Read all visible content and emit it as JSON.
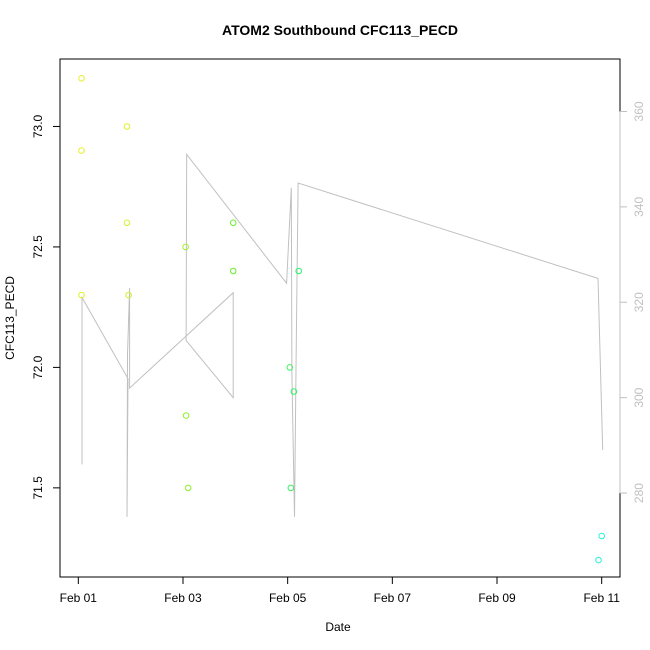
{
  "chart_data": {
    "type": "scatter",
    "title": "ATOM2 Southbound CFC113_PECD",
    "xlabel": "Date",
    "ylabel": "CFC113_PECD",
    "x_tick_labels": [
      "Feb 01",
      "Feb 03",
      "Feb 05",
      "Feb 07",
      "Feb 09",
      "Feb 11"
    ],
    "x_tick_values": [
      0,
      2,
      4,
      6,
      8,
      10
    ],
    "xlim": [
      -0.35,
      10.35
    ],
    "ylim": [
      71.13,
      73.28
    ],
    "y_ticks": [
      71.5,
      72.0,
      72.5,
      73.0
    ],
    "y_tick_labels": [
      "71.5",
      "72.0",
      "72.5",
      "73.0"
    ],
    "y2_ticks": [
      280,
      300,
      320,
      340,
      360
    ],
    "y2_tick_labels": [
      "280",
      "300",
      "320",
      "340",
      "360"
    ],
    "y2lim": [
      262.4,
      371.0
    ],
    "grid": false,
    "points": [
      {
        "x": 0.06,
        "y": 73.2,
        "color": "#e6f028"
      },
      {
        "x": 0.06,
        "y": 72.9,
        "color": "#e6f028"
      },
      {
        "x": 0.06,
        "y": 72.3,
        "color": "#e0f028"
      },
      {
        "x": 0.93,
        "y": 73.0,
        "color": "#e0f028"
      },
      {
        "x": 0.93,
        "y": 72.6,
        "color": "#d6f028"
      },
      {
        "x": 0.96,
        "y": 72.3,
        "color": "#d0f028"
      },
      {
        "x": 2.05,
        "y": 72.5,
        "color": "#9ef028"
      },
      {
        "x": 2.06,
        "y": 71.8,
        "color": "#8cf028"
      },
      {
        "x": 2.1,
        "y": 71.5,
        "color": "#88f028"
      },
      {
        "x": 2.96,
        "y": 72.6,
        "color": "#6cf028"
      },
      {
        "x": 2.96,
        "y": 72.4,
        "color": "#66f028"
      },
      {
        "x": 4.04,
        "y": 72.0,
        "color": "#3cf05a"
      },
      {
        "x": 4.06,
        "y": 71.5,
        "color": "#34f05e"
      },
      {
        "x": 4.12,
        "y": 71.9,
        "color": "#30f064"
      },
      {
        "x": 4.21,
        "y": 72.4,
        "color": "#28f070"
      },
      {
        "x": 9.94,
        "y": 71.2,
        "color": "#28f0d8"
      },
      {
        "x": 10.0,
        "y": 71.3,
        "color": "#28f0e0"
      }
    ],
    "secondary_series": {
      "color": "#c0c0c0",
      "points": [
        {
          "x": 0.07,
          "y2": 286
        },
        {
          "x": 0.07,
          "y2": 321
        },
        {
          "x": 0.95,
          "y2": 304
        },
        {
          "x": 0.93,
          "y2": 275
        },
        {
          "x": 0.94,
          "y2": 309
        },
        {
          "x": 0.98,
          "y2": 323
        },
        {
          "x": 0.98,
          "y2": 302
        },
        {
          "x": 2.96,
          "y2": 322
        },
        {
          "x": 2.96,
          "y2": 300
        },
        {
          "x": 2.06,
          "y2": 312
        },
        {
          "x": 2.07,
          "y2": 351
        },
        {
          "x": 3.98,
          "y2": 324
        },
        {
          "x": 4.07,
          "y2": 344
        },
        {
          "x": 4.08,
          "y2": 305
        },
        {
          "x": 4.13,
          "y2": 275
        },
        {
          "x": 4.16,
          "y2": 306
        },
        {
          "x": 4.2,
          "y2": 345
        },
        {
          "x": 9.93,
          "y2": 325
        },
        {
          "x": 10.02,
          "y2": 289
        }
      ]
    }
  }
}
